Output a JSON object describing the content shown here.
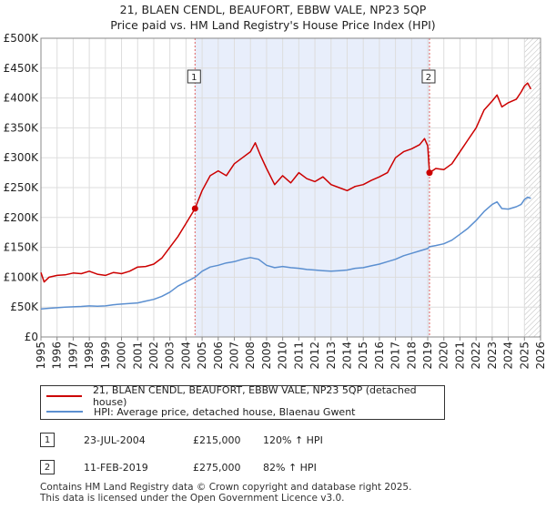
{
  "title_line1": "21, BLAEN CENDL, BEAUFORT, EBBW VALE, NP23 5QP",
  "title_line2": "Price paid vs. HM Land Registry's House Price Index (HPI)",
  "colors": {
    "property": "#cc0000",
    "hpi": "#5b8fd0",
    "shade": "#e8eefb",
    "marker_line": "#e06060",
    "grid": "#dddddd"
  },
  "legend": {
    "property_label": "21, BLAEN CENDL, BEAUFORT, EBBW VALE, NP23 5QP (detached house)",
    "hpi_label": "HPI: Average price, detached house, Blaenau Gwent"
  },
  "sales": [
    {
      "num": "1",
      "date": "23-JUL-2004",
      "price": "£215,000",
      "hpi_change": "120% ↑ HPI"
    },
    {
      "num": "2",
      "date": "11-FEB-2019",
      "price": "£275,000",
      "hpi_change": "82% ↑ HPI"
    }
  ],
  "footer_line1": "Contains HM Land Registry data © Crown copyright and database right 2025.",
  "footer_line2": "This data is licensed under the Open Government Licence v3.0.",
  "chart_data": {
    "type": "line",
    "title": "21, BLAEN CENDL, BEAUFORT, EBBW VALE, NP23 5QP — Price paid vs. HM Land Registry's House Price Index (HPI)",
    "xlim": [
      1995,
      2026
    ],
    "ylim": [
      0,
      500000
    ],
    "x_ticks": [
      "1995",
      "1996",
      "1997",
      "1998",
      "1999",
      "2000",
      "2001",
      "2002",
      "2003",
      "2004",
      "2005",
      "2006",
      "2007",
      "2008",
      "2009",
      "2010",
      "2011",
      "2012",
      "2013",
      "2014",
      "2015",
      "2016",
      "2017",
      "2018",
      "2019",
      "2020",
      "2021",
      "2022",
      "2023",
      "2024",
      "2025",
      "2026"
    ],
    "y_ticks": [
      {
        "value": 0,
        "label": "£0"
      },
      {
        "value": 50000,
        "label": "£50K"
      },
      {
        "value": 100000,
        "label": "£100K"
      },
      {
        "value": 150000,
        "label": "£150K"
      },
      {
        "value": 200000,
        "label": "£200K"
      },
      {
        "value": 250000,
        "label": "£250K"
      },
      {
        "value": 300000,
        "label": "£300K"
      },
      {
        "value": 350000,
        "label": "£350K"
      },
      {
        "value": 400000,
        "label": "£400K"
      },
      {
        "value": 450000,
        "label": "£450K"
      },
      {
        "value": 500000,
        "label": "£500K"
      }
    ],
    "shaded_period": [
      2004.56,
      2019.11
    ],
    "forecast_start": 2025.0,
    "sale_markers": [
      {
        "label": "1",
        "x": 2004.56,
        "y": 215000
      },
      {
        "label": "2",
        "x": 2019.11,
        "y": 275000
      }
    ],
    "series": [
      {
        "name": "21, BLAEN CENDL, BEAUFORT, EBBW VALE, NP23 5QP (detached house)",
        "color": "#cc0000",
        "points": [
          [
            1995.0,
            108000
          ],
          [
            1995.2,
            92000
          ],
          [
            1995.5,
            100000
          ],
          [
            1996.0,
            103000
          ],
          [
            1996.5,
            104000
          ],
          [
            1997.0,
            107000
          ],
          [
            1997.5,
            106000
          ],
          [
            1998.0,
            110000
          ],
          [
            1998.5,
            105000
          ],
          [
            1999.0,
            103000
          ],
          [
            1999.5,
            108000
          ],
          [
            2000.0,
            106000
          ],
          [
            2000.5,
            110000
          ],
          [
            2001.0,
            117000
          ],
          [
            2001.5,
            118000
          ],
          [
            2002.0,
            122000
          ],
          [
            2002.5,
            132000
          ],
          [
            2003.0,
            150000
          ],
          [
            2003.5,
            168000
          ],
          [
            2004.0,
            190000
          ],
          [
            2004.56,
            215000
          ],
          [
            2005.0,
            245000
          ],
          [
            2005.5,
            270000
          ],
          [
            2006.0,
            278000
          ],
          [
            2006.5,
            270000
          ],
          [
            2007.0,
            290000
          ],
          [
            2007.5,
            300000
          ],
          [
            2008.0,
            310000
          ],
          [
            2008.3,
            325000
          ],
          [
            2008.6,
            305000
          ],
          [
            2009.0,
            282000
          ],
          [
            2009.5,
            255000
          ],
          [
            2010.0,
            270000
          ],
          [
            2010.5,
            258000
          ],
          [
            2011.0,
            275000
          ],
          [
            2011.5,
            265000
          ],
          [
            2012.0,
            260000
          ],
          [
            2012.5,
            268000
          ],
          [
            2013.0,
            255000
          ],
          [
            2013.5,
            250000
          ],
          [
            2014.0,
            245000
          ],
          [
            2014.5,
            252000
          ],
          [
            2015.0,
            255000
          ],
          [
            2015.5,
            262000
          ],
          [
            2016.0,
            268000
          ],
          [
            2016.5,
            275000
          ],
          [
            2017.0,
            300000
          ],
          [
            2017.5,
            310000
          ],
          [
            2018.0,
            315000
          ],
          [
            2018.5,
            322000
          ],
          [
            2018.8,
            332000
          ],
          [
            2019.0,
            320000
          ],
          [
            2019.11,
            275000
          ],
          [
            2019.5,
            282000
          ],
          [
            2020.0,
            280000
          ],
          [
            2020.5,
            290000
          ],
          [
            2021.0,
            310000
          ],
          [
            2021.5,
            330000
          ],
          [
            2022.0,
            350000
          ],
          [
            2022.5,
            380000
          ],
          [
            2023.0,
            395000
          ],
          [
            2023.3,
            405000
          ],
          [
            2023.6,
            385000
          ],
          [
            2024.0,
            392000
          ],
          [
            2024.5,
            398000
          ],
          [
            2024.8,
            410000
          ],
          [
            2025.0,
            420000
          ],
          [
            2025.2,
            425000
          ],
          [
            2025.4,
            415000
          ]
        ]
      },
      {
        "name": "HPI: Average price, detached house, Blaenau Gwent",
        "color": "#5b8fd0",
        "points": [
          [
            1995.0,
            47000
          ],
          [
            1995.5,
            48000
          ],
          [
            1996.0,
            49000
          ],
          [
            1996.5,
            50000
          ],
          [
            1997.0,
            50500
          ],
          [
            1997.5,
            51000
          ],
          [
            1998.0,
            52000
          ],
          [
            1998.5,
            51500
          ],
          [
            1999.0,
            52000
          ],
          [
            1999.5,
            54000
          ],
          [
            2000.0,
            55000
          ],
          [
            2000.5,
            56000
          ],
          [
            2001.0,
            57000
          ],
          [
            2001.5,
            60000
          ],
          [
            2002.0,
            63000
          ],
          [
            2002.5,
            68000
          ],
          [
            2003.0,
            75000
          ],
          [
            2003.5,
            85000
          ],
          [
            2004.0,
            92000
          ],
          [
            2004.56,
            100000
          ],
          [
            2005.0,
            110000
          ],
          [
            2005.5,
            117000
          ],
          [
            2006.0,
            120000
          ],
          [
            2006.5,
            124000
          ],
          [
            2007.0,
            126000
          ],
          [
            2007.5,
            130000
          ],
          [
            2008.0,
            133000
          ],
          [
            2008.5,
            130000
          ],
          [
            2009.0,
            120000
          ],
          [
            2009.5,
            116000
          ],
          [
            2010.0,
            118000
          ],
          [
            2010.5,
            116000
          ],
          [
            2011.0,
            115000
          ],
          [
            2011.5,
            113000
          ],
          [
            2012.0,
            112000
          ],
          [
            2012.5,
            111000
          ],
          [
            2013.0,
            110000
          ],
          [
            2013.5,
            111000
          ],
          [
            2014.0,
            112000
          ],
          [
            2014.5,
            115000
          ],
          [
            2015.0,
            116000
          ],
          [
            2015.5,
            119000
          ],
          [
            2016.0,
            122000
          ],
          [
            2016.5,
            126000
          ],
          [
            2017.0,
            130000
          ],
          [
            2017.5,
            136000
          ],
          [
            2018.0,
            140000
          ],
          [
            2018.5,
            144000
          ],
          [
            2019.0,
            148000
          ],
          [
            2019.11,
            151000
          ],
          [
            2019.5,
            153000
          ],
          [
            2020.0,
            156000
          ],
          [
            2020.5,
            162000
          ],
          [
            2021.0,
            172000
          ],
          [
            2021.5,
            182000
          ],
          [
            2022.0,
            195000
          ],
          [
            2022.5,
            210000
          ],
          [
            2023.0,
            222000
          ],
          [
            2023.3,
            226000
          ],
          [
            2023.6,
            215000
          ],
          [
            2024.0,
            214000
          ],
          [
            2024.5,
            218000
          ],
          [
            2024.8,
            222000
          ],
          [
            2025.0,
            230000
          ],
          [
            2025.2,
            234000
          ],
          [
            2025.4,
            232000
          ]
        ]
      }
    ]
  }
}
